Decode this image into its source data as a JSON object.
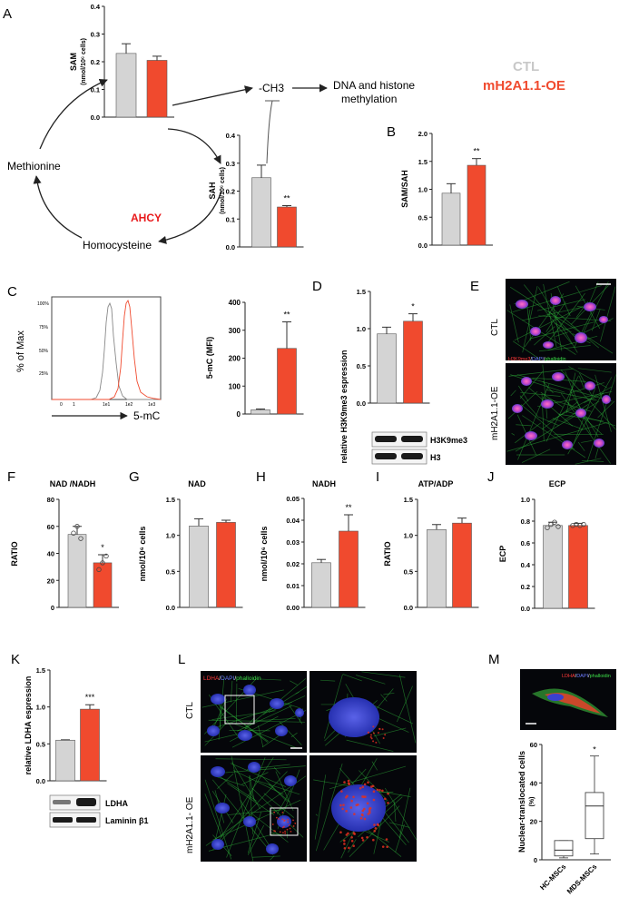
{
  "colors": {
    "ctl": "#d4d4d4",
    "oe": "#f04a2e",
    "axis": "#222222",
    "ctl_label": "#c8c8c8",
    "ahcy": "#e8191b"
  },
  "legend": {
    "ctl": "CTL",
    "oe": "mH2A1.1-OE"
  },
  "panels": {
    "A": "A",
    "B": "B",
    "C": "C",
    "D": "D",
    "E": "E",
    "F": "F",
    "G": "G",
    "H": "H",
    "I": "I",
    "J": "J",
    "K": "K",
    "L": "L",
    "M": "M"
  },
  "cycle": {
    "methionine": "Methionine",
    "homocysteine": "Homocysteine",
    "ahcy": "AHCY",
    "ch3": "-CH3",
    "dna_line1": "DNA and histone",
    "dna_line2": "methylation"
  },
  "flow": {
    "pct_max": "% of Max",
    "xlabel": "5-mC",
    "y_ticks": [
      "100%",
      "75%",
      "50%",
      "25%"
    ],
    "x_ticks": [
      "0",
      "1",
      "1e1",
      "1e2",
      "1e3"
    ]
  },
  "blots": {
    "D": [
      "H3K9me3",
      "H3"
    ],
    "K": [
      "LDHA",
      "Laminin β1"
    ]
  },
  "micro": {
    "E_row1": "CTL",
    "E_row2": "mH2A1.1-OE",
    "E_stain": [
      "H3K9me3",
      "/",
      "DAPI",
      "/",
      "phalloidin"
    ],
    "L_row1": "CTL",
    "L_row2": "mH2A1.1- OE",
    "L_stain": [
      "LDHA",
      "/",
      "DAPI",
      "/",
      "phalloidin"
    ],
    "M_stain": [
      "LDHA",
      "/",
      "DAPI",
      "/",
      "phalloidin"
    ]
  },
  "chart_data": [
    {
      "id": "SAM",
      "type": "bar",
      "title": "",
      "ylabel_line1": "SAM",
      "ylabel_line2": "(nmol/10⁶ cells)",
      "categories": [
        "CTL",
        "mH2A1.1-OE"
      ],
      "values": [
        0.23,
        0.205
      ],
      "errors": [
        0.035,
        0.015
      ],
      "ylim": [
        0,
        0.4
      ],
      "yticks": [
        "0.0",
        "0.1",
        "0.2",
        "0.3",
        "0.4"
      ],
      "tickvals": [
        0,
        0.1,
        0.2,
        0.3,
        0.4
      ],
      "sig": ""
    },
    {
      "id": "SAH",
      "type": "bar",
      "title": "",
      "ylabel_line1": "SAH",
      "ylabel_line2": "(nmol/10⁶ cells)",
      "categories": [
        "CTL",
        "mH2A1.1-OE"
      ],
      "values": [
        0.248,
        0.143
      ],
      "errors": [
        0.045,
        0.005
      ],
      "ylim": [
        0,
        0.4
      ],
      "yticks": [
        "0.0",
        "0.1",
        "0.2",
        "0.3",
        "0.4"
      ],
      "tickvals": [
        0,
        0.1,
        0.2,
        0.3,
        0.4
      ],
      "sig": "**"
    },
    {
      "id": "SAM_SAH",
      "type": "bar",
      "title": "",
      "ylabel_line1": "SAM/SAH",
      "ylabel_line2": "",
      "categories": [
        "CTL",
        "mH2A1.1-OE"
      ],
      "values": [
        0.93,
        1.43
      ],
      "errors": [
        0.17,
        0.12
      ],
      "ylim": [
        0,
        2.0
      ],
      "yticks": [
        "0.0",
        "0.5",
        "1.0",
        "1.5",
        "2.0"
      ],
      "tickvals": [
        0,
        0.5,
        1.0,
        1.5,
        2.0
      ],
      "sig": "**"
    },
    {
      "id": "MFI",
      "type": "bar",
      "title": "",
      "ylabel_line1": "5-mC (MFI)",
      "ylabel_line2": "",
      "categories": [
        "CTL",
        "mH2A1.1-OE"
      ],
      "values": [
        15,
        235
      ],
      "errors": [
        3,
        95
      ],
      "ylim": [
        0,
        400
      ],
      "yticks": [
        "0",
        "100",
        "200",
        "300",
        "400"
      ],
      "tickvals": [
        0,
        100,
        200,
        300,
        400
      ],
      "sig": "**"
    },
    {
      "id": "H3K9me3",
      "type": "bar",
      "title": "",
      "ylabel_line1": "relative H3K9me3 espression",
      "ylabel_line2": "",
      "categories": [
        "CTL",
        "mH2A1.1-OE"
      ],
      "values": [
        0.93,
        1.1
      ],
      "errors": [
        0.09,
        0.1
      ],
      "ylim": [
        0,
        1.5
      ],
      "yticks": [
        "0.0",
        "0.5",
        "1.0",
        "1.5"
      ],
      "tickvals": [
        0,
        0.5,
        1.0,
        1.5
      ],
      "sig": "*"
    },
    {
      "id": "NAD_NADH",
      "type": "bar",
      "title": "NAD /NADH",
      "ylabel_line1": "RATIO",
      "ylabel_line2": "",
      "categories": [
        "CTL",
        "mH2A1.1-OE"
      ],
      "values": [
        54,
        33
      ],
      "errors": [
        6,
        6
      ],
      "points": [
        [
          55,
          60,
          51
        ],
        [
          28,
          33,
          38
        ]
      ],
      "ylim": [
        0,
        80
      ],
      "yticks": [
        "0",
        "20",
        "40",
        "60",
        "80"
      ],
      "tickvals": [
        0,
        20,
        40,
        60,
        80
      ],
      "sig": "*"
    },
    {
      "id": "NAD",
      "type": "bar",
      "title": "NAD",
      "ylabel_line1": "nmol/10⁶ cells",
      "ylabel_line2": "",
      "categories": [
        "CTL",
        "mH2A1.1-OE"
      ],
      "values": [
        1.13,
        1.18
      ],
      "errors": [
        0.1,
        0.03
      ],
      "ylim": [
        0,
        1.5
      ],
      "yticks": [
        "0.0",
        "0.5",
        "1.0",
        "1.5"
      ],
      "tickvals": [
        0,
        0.5,
        1.0,
        1.5
      ],
      "sig": ""
    },
    {
      "id": "NADH",
      "type": "bar",
      "title": "NADH",
      "ylabel_line1": "nmol/10⁶ cells",
      "ylabel_line2": "",
      "categories": [
        "CTL",
        "mH2A1.1-OE"
      ],
      "values": [
        0.0205,
        0.035
      ],
      "errors": [
        0.0015,
        0.0075
      ],
      "ylim": [
        0,
        0.05
      ],
      "yticks": [
        "0.00",
        "0.01",
        "0.02",
        "0.03",
        "0.04",
        "0.05"
      ],
      "tickvals": [
        0,
        0.01,
        0.02,
        0.03,
        0.04,
        0.05
      ],
      "sig": "**"
    },
    {
      "id": "ATP_ADP",
      "type": "bar",
      "title": "ATP/ADP",
      "ylabel_line1": "RATIO",
      "ylabel_line2": "",
      "categories": [
        "CTL",
        "mH2A1.1-OE"
      ],
      "values": [
        1.08,
        1.17
      ],
      "errors": [
        0.07,
        0.07
      ],
      "ylim": [
        0,
        1.5
      ],
      "yticks": [
        "0.0",
        "0.5",
        "1.0",
        "1.5"
      ],
      "tickvals": [
        0,
        0.5,
        1.0,
        1.5
      ],
      "sig": ""
    },
    {
      "id": "ECP",
      "type": "bar",
      "title": "ECP",
      "ylabel_line1": "ECP",
      "ylabel_line2": "",
      "categories": [
        "CTL",
        "mH2A1.1-OE"
      ],
      "values": [
        0.76,
        0.76
      ],
      "errors": [
        0.03,
        0.02
      ],
      "points": [
        [
          0.74,
          0.77,
          0.79,
          0.75
        ],
        [
          0.76,
          0.77,
          0.76,
          0.77
        ]
      ],
      "ylim": [
        0,
        1.0
      ],
      "yticks": [
        "0.0",
        "0.2",
        "0.4",
        "0.6",
        "0.8",
        "1.0"
      ],
      "tickvals": [
        0,
        0.2,
        0.4,
        0.6,
        0.8,
        1.0
      ],
      "sig": ""
    },
    {
      "id": "LDHA",
      "type": "bar",
      "title": "",
      "ylabel_line1": "relative LDHA espression",
      "ylabel_line2": "",
      "categories": [
        "CTL",
        "mH2A1.1-OE"
      ],
      "values": [
        0.55,
        0.97
      ],
      "errors": [
        0.005,
        0.06
      ],
      "ylim": [
        0,
        1.5
      ],
      "yticks": [
        "0.0",
        "0.5",
        "1.0",
        "1.5"
      ],
      "tickvals": [
        0,
        0.5,
        1.0,
        1.5
      ],
      "sig": "***"
    },
    {
      "id": "NUC",
      "type": "box",
      "title": "",
      "ylabel_line1": "Nuclear-translocated cells",
      "ylabel_line2": "(%)",
      "categories": [
        "HC-MSCs",
        "MDS-MSCs"
      ],
      "boxes": [
        {
          "min": 1,
          "q1": 2,
          "median": 5,
          "q3": 10,
          "max": 10
        },
        {
          "min": 3,
          "q1": 11,
          "median": 28,
          "q3": 35,
          "max": 54
        }
      ],
      "ylim": [
        0,
        60
      ],
      "yticks": [
        "0",
        "20",
        "40",
        "60"
      ],
      "tickvals": [
        0,
        20,
        40,
        60
      ],
      "sig": "*"
    }
  ]
}
